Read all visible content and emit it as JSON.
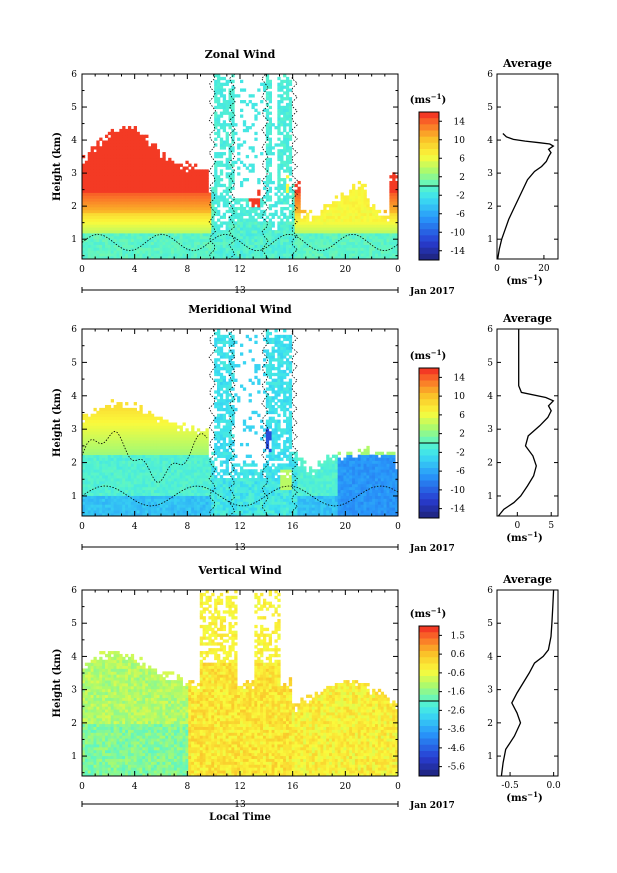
{
  "chart_data": [
    {
      "type": "heatmap",
      "title": "Zonal Wind",
      "ylabel": "Height (km)",
      "x_ticks": [
        "0",
        "4",
        "8",
        "12",
        "16",
        "20",
        "0"
      ],
      "xlim": [
        0,
        24
      ],
      "ylim": [
        0.4,
        6
      ],
      "y_ticks": [
        "1",
        "2",
        "3",
        "4",
        "5",
        "6"
      ],
      "date_label": "13",
      "month_label": "Jan 2017",
      "colorbar": {
        "unit": "(ms⁻¹)",
        "ticks": [
          "14",
          "10",
          "6",
          "2",
          "-2",
          "-6",
          "-10",
          "-14"
        ],
        "range": [
          -16,
          16
        ]
      },
      "average_profile": {
        "title": "Average",
        "xlabel": "(ms⁻¹)",
        "x_ticks": [
          "0",
          "20"
        ],
        "xlim": [
          0,
          26
        ],
        "points": [
          [
            0.3,
            0.4
          ],
          [
            1,
            0.7
          ],
          [
            2,
            1.0
          ],
          [
            3.5,
            1.3
          ],
          [
            5,
            1.6
          ],
          [
            7,
            1.9
          ],
          [
            9,
            2.2
          ],
          [
            11,
            2.5
          ],
          [
            13,
            2.8
          ],
          [
            16,
            3.05
          ],
          [
            19,
            3.2
          ],
          [
            21,
            3.35
          ],
          [
            22,
            3.5
          ],
          [
            23,
            3.62
          ],
          [
            22,
            3.72
          ],
          [
            24,
            3.82
          ],
          [
            22.5,
            3.88
          ],
          [
            18,
            3.92
          ],
          [
            12,
            3.97
          ],
          [
            7,
            4.02
          ],
          [
            4,
            4.1
          ],
          [
            2.5,
            4.2
          ]
        ]
      }
    },
    {
      "type": "heatmap",
      "title": "Meridional Wind",
      "ylabel": "Height (km)",
      "x_ticks": [
        "0",
        "4",
        "8",
        "12",
        "16",
        "20",
        "0"
      ],
      "xlim": [
        0,
        24
      ],
      "ylim": [
        0.4,
        6
      ],
      "y_ticks": [
        "1",
        "2",
        "3",
        "4",
        "5",
        "6"
      ],
      "date_label": "13",
      "month_label": "Jan 2017",
      "colorbar": {
        "unit": "(ms⁻¹)",
        "ticks": [
          "14",
          "10",
          "6",
          "2",
          "-2",
          "-6",
          "-10",
          "-14"
        ],
        "range": [
          -16,
          16
        ]
      },
      "average_profile": {
        "title": "Average",
        "xlabel": "(ms⁻¹)",
        "x_ticks": [
          "0",
          "5"
        ],
        "xlim": [
          -3,
          6
        ],
        "points": [
          [
            -2.8,
            0.4
          ],
          [
            -2,
            0.6
          ],
          [
            -0.5,
            0.8
          ],
          [
            0.5,
            1.0
          ],
          [
            1.5,
            1.3
          ],
          [
            2.4,
            1.6
          ],
          [
            2.8,
            1.9
          ],
          [
            2.3,
            2.2
          ],
          [
            1.2,
            2.5
          ],
          [
            1.6,
            2.8
          ],
          [
            3.3,
            3.1
          ],
          [
            4.5,
            3.35
          ],
          [
            5,
            3.55
          ],
          [
            4.6,
            3.7
          ],
          [
            5.3,
            3.85
          ],
          [
            4.2,
            3.95
          ],
          [
            0.6,
            4.1
          ],
          [
            0.2,
            4.3
          ],
          [
            0.2,
            5
          ],
          [
            0.2,
            6
          ]
        ]
      }
    },
    {
      "type": "heatmap",
      "title": "Vertical Wind",
      "ylabel": "Height (km)",
      "xlabel": "Local Time",
      "x_ticks": [
        "0",
        "4",
        "8",
        "12",
        "16",
        "20",
        "0"
      ],
      "xlim": [
        0,
        24
      ],
      "ylim": [
        0.4,
        6
      ],
      "y_ticks": [
        "1",
        "2",
        "3",
        "4",
        "5",
        "6"
      ],
      "date_label": "13",
      "month_label": "Jan 2017",
      "colorbar": {
        "unit": "(ms⁻¹)",
        "ticks": [
          "1.5",
          "0.6",
          "-0.6",
          "-1.6",
          "-2.6",
          "-3.6",
          "-4.6",
          "-5.6"
        ],
        "range": [
          -6,
          2
        ]
      },
      "average_profile": {
        "title": "Average",
        "xlabel": "(ms⁻¹)",
        "x_ticks": [
          "-0.5",
          "0.0"
        ],
        "xlim": [
          -0.65,
          0.05
        ],
        "points": [
          [
            -0.6,
            0.4
          ],
          [
            -0.58,
            0.8
          ],
          [
            -0.55,
            1.2
          ],
          [
            -0.45,
            1.6
          ],
          [
            -0.38,
            2.0
          ],
          [
            -0.42,
            2.3
          ],
          [
            -0.48,
            2.6
          ],
          [
            -0.42,
            2.9
          ],
          [
            -0.35,
            3.2
          ],
          [
            -0.28,
            3.5
          ],
          [
            -0.22,
            3.8
          ],
          [
            -0.12,
            4.0
          ],
          [
            -0.06,
            4.2
          ],
          [
            -0.03,
            4.6
          ],
          [
            -0.02,
            5.0
          ],
          [
            -0.01,
            5.5
          ],
          [
            0.0,
            6.0
          ]
        ]
      }
    }
  ]
}
